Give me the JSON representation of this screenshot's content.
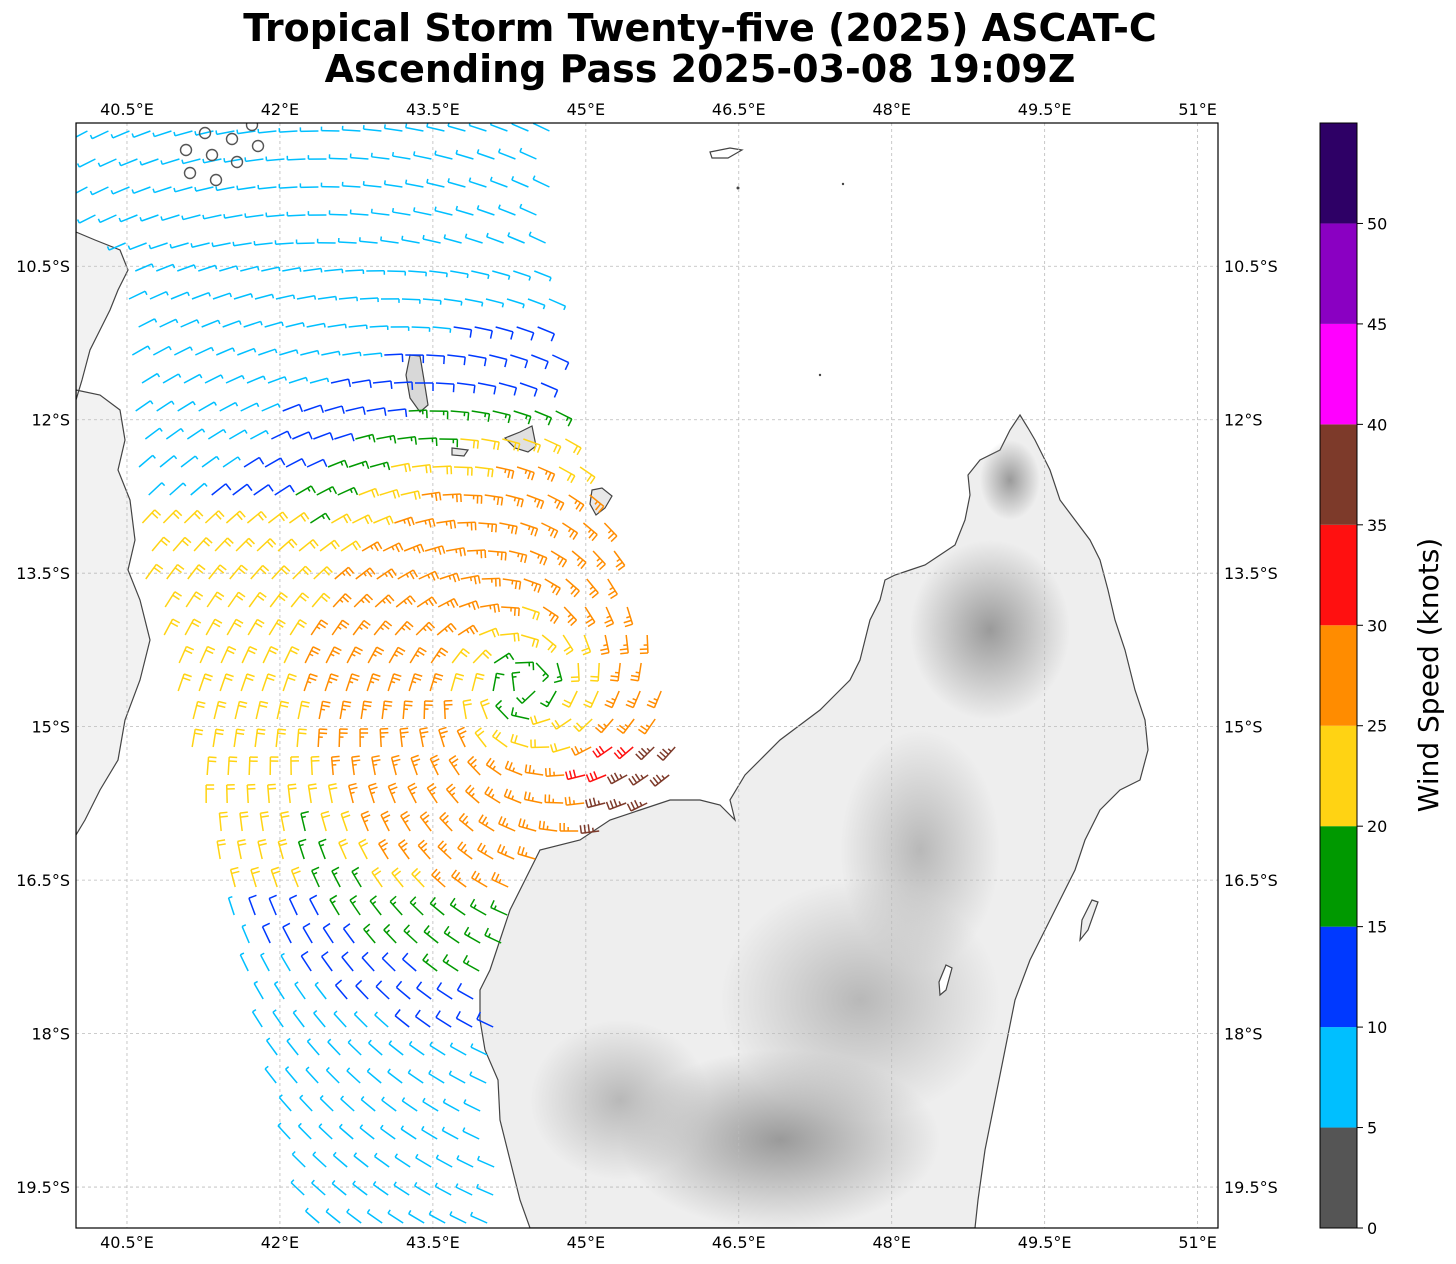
{
  "title_line1": "Tropical Storm Twenty-five (2025) ASCAT-C",
  "title_line2": "Ascending Pass 2025-03-08 19:09Z",
  "map": {
    "lon_range": [
      40.0,
      51.2
    ],
    "lat_range": [
      -9.1,
      -19.9
    ],
    "lon_ticks": [
      40.5,
      42.0,
      43.5,
      45.0,
      46.5,
      48.0,
      49.5,
      51.0
    ],
    "lon_tick_labels": [
      "40.5°E",
      "42°E",
      "43.5°E",
      "45°E",
      "46.5°E",
      "48°E",
      "49.5°E",
      "51°E"
    ],
    "lat_ticks": [
      -10.5,
      -12.0,
      -13.5,
      -15.0,
      -16.5,
      -18.0,
      -19.5
    ],
    "lat_tick_labels": [
      "10.5°S",
      "12°S",
      "13.5°S",
      "15°S",
      "16.5°S",
      "18°S",
      "19.5°S"
    ],
    "gridlines": true,
    "land_features": [
      "Mozambique coast",
      "Comoros",
      "Mayotte",
      "Madagascar"
    ],
    "calm_markers": "circles near 41.5°E-42.3°E, 9.3°S-9.6°S",
    "storm_center_approx": [
      44.4,
      -14.6
    ],
    "max_wind_region": "30-40 kt red/brown barbs near 45.2°E-46.0°E, 15°S-15.5°S"
  },
  "colorbar": {
    "label": "Wind Speed (knots)",
    "tick_labels": [
      "0",
      "5",
      "10",
      "15",
      "20",
      "25",
      "30",
      "35",
      "40",
      "45",
      "50"
    ],
    "bins": [
      {
        "min": 0,
        "max": 5,
        "color": "#555555"
      },
      {
        "min": 5,
        "max": 10,
        "color": "#00bfff"
      },
      {
        "min": 10,
        "max": 15,
        "color": "#0039ff"
      },
      {
        "min": 15,
        "max": 20,
        "color": "#009900"
      },
      {
        "min": 20,
        "max": 25,
        "color": "#ffd313"
      },
      {
        "min": 25,
        "max": 30,
        "color": "#ff8c00"
      },
      {
        "min": 30,
        "max": 35,
        "color": "#ff1010"
      },
      {
        "min": 35,
        "max": 40,
        "color": "#7d3a2a"
      },
      {
        "min": 40,
        "max": 45,
        "color": "#ff00ff"
      },
      {
        "min": 45,
        "max": 50,
        "color": "#8a00c2"
      },
      {
        "min": 50,
        "max": 55,
        "color": "#2e0066"
      }
    ]
  }
}
